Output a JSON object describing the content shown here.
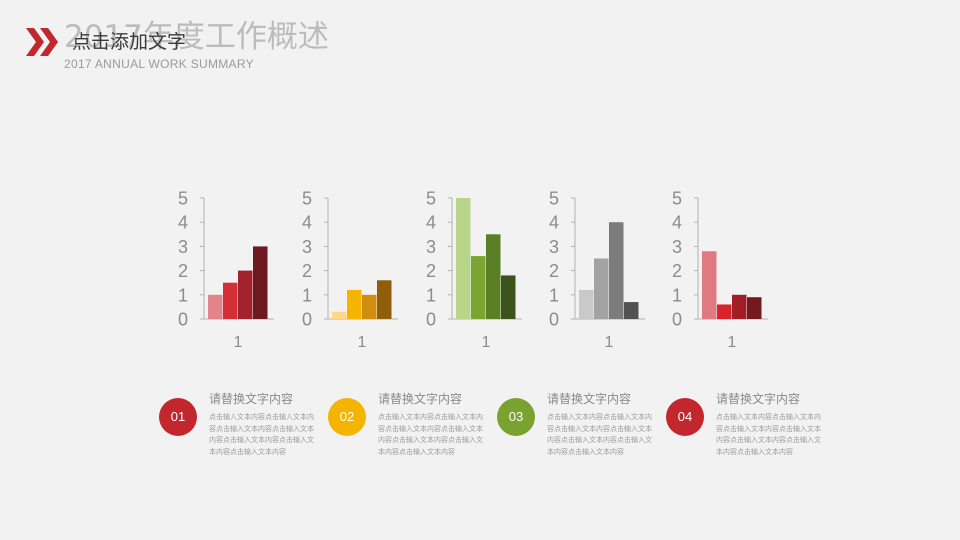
{
  "header": {
    "title": "2017年度工作概述",
    "overlay_text": "点击添加文字",
    "subtitle": "2017 ANNUAL  WORK SUMMARY"
  },
  "colors": {
    "background": "#f2f2f2",
    "red": "#c1272d",
    "yellow": "#f5b400",
    "green": "#7aa22f",
    "axis": "#b3b3b3",
    "tick_text": "#8c8c8c"
  },
  "chart_data": [
    {
      "type": "bar",
      "categories": [
        "1"
      ],
      "ylim": [
        0,
        5
      ],
      "yticks": [
        0,
        1,
        2,
        3,
        4,
        5
      ],
      "series": [
        {
          "values": [
            1.0
          ],
          "color": "#e48389"
        },
        {
          "values": [
            1.5
          ],
          "color": "#d33036"
        },
        {
          "values": [
            2.0
          ],
          "color": "#a3232c"
        },
        {
          "values": [
            3.0
          ],
          "color": "#6f1a20"
        }
      ]
    },
    {
      "type": "bar",
      "categories": [
        "1"
      ],
      "ylim": [
        0,
        5
      ],
      "yticks": [
        0,
        1,
        2,
        3,
        4,
        5
      ],
      "series": [
        {
          "values": [
            0.3
          ],
          "color": "#fdd88a"
        },
        {
          "values": [
            1.2
          ],
          "color": "#f5b400"
        },
        {
          "values": [
            1.0
          ],
          "color": "#d18e0e"
        },
        {
          "values": [
            1.6
          ],
          "color": "#8f5e0a"
        }
      ]
    },
    {
      "type": "bar",
      "categories": [
        "1"
      ],
      "ylim": [
        0,
        5
      ],
      "yticks": [
        0,
        1,
        2,
        3,
        4,
        5
      ],
      "series": [
        {
          "values": [
            5.0
          ],
          "color": "#b7d68a"
        },
        {
          "values": [
            2.6
          ],
          "color": "#7ba432"
        },
        {
          "values": [
            3.5
          ],
          "color": "#5a7f26"
        },
        {
          "values": [
            1.8
          ],
          "color": "#3d531c"
        }
      ]
    },
    {
      "type": "bar",
      "categories": [
        "1"
      ],
      "ylim": [
        0,
        5
      ],
      "yticks": [
        0,
        1,
        2,
        3,
        4,
        5
      ],
      "series": [
        {
          "values": [
            1.2
          ],
          "color": "#c9c9c9"
        },
        {
          "values": [
            2.5
          ],
          "color": "#a3a3a3"
        },
        {
          "values": [
            4.0
          ],
          "color": "#7c7c7c"
        },
        {
          "values": [
            0.7
          ],
          "color": "#525252"
        }
      ]
    },
    {
      "type": "bar",
      "categories": [
        "1"
      ],
      "ylim": [
        0,
        5
      ],
      "yticks": [
        0,
        1,
        2,
        3,
        4,
        5
      ],
      "series": [
        {
          "values": [
            2.8
          ],
          "color": "#e07a80"
        },
        {
          "values": [
            0.6
          ],
          "color": "#d7232b"
        },
        {
          "values": [
            1.0
          ],
          "color": "#a31d26"
        },
        {
          "values": [
            0.9
          ],
          "color": "#731a20"
        }
      ]
    }
  ],
  "items": [
    {
      "number": "01",
      "color": "#c1272d",
      "title": "请替换文字内容",
      "body": "点击输入文本内容点击输入文本内容点击输入文本内容点击输入文本内容点击输入文本内容点击输入文本内容点击输入文本内容"
    },
    {
      "number": "02",
      "color": "#f5b400",
      "title": "请替换文字内容",
      "body": "点击输入文本内容点击输入文本内容点击输入文本内容点击输入文本内容点击输入文本内容点击输入文本内容点击输入文本内容"
    },
    {
      "number": "03",
      "color": "#7aa22f",
      "title": "请替换文字内容",
      "body": "点击输入文本内容点击输入文本内容点击输入文本内容点击输入文本内容点击输入文本内容点击输入文本内容点击输入文本内容"
    },
    {
      "number": "04",
      "color": "#c1272d",
      "title": "请替换文字内容",
      "body": "点击输入文本内容点击输入文本内容点击输入文本内容点击输入文本内容点击输入文本内容点击输入文本内容点击输入文本内容"
    }
  ]
}
